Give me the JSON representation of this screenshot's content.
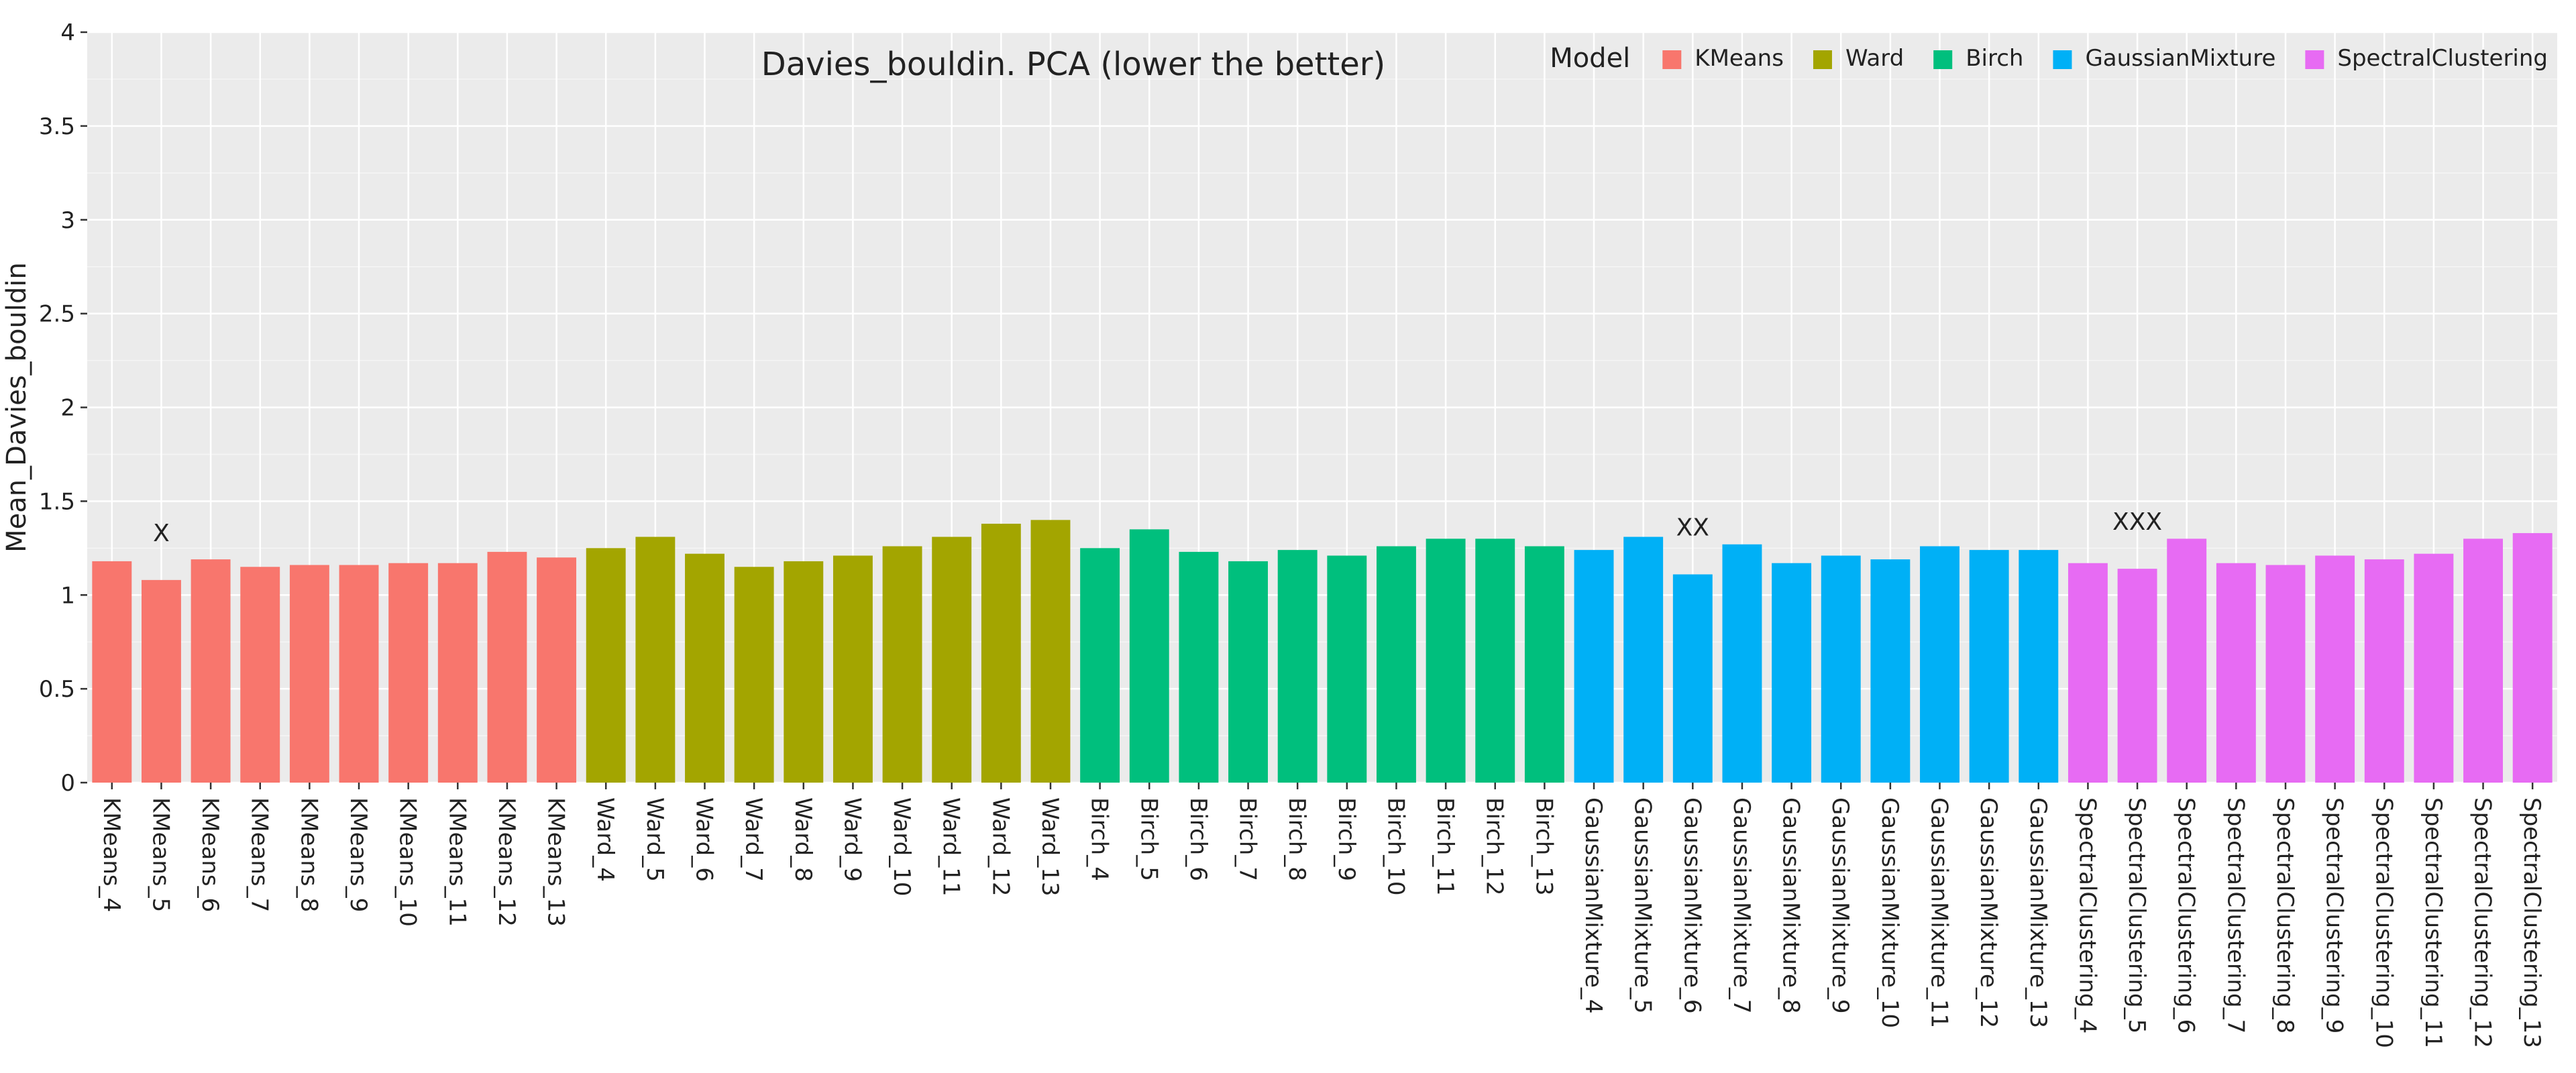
{
  "chart_data": {
    "type": "bar",
    "title": "Davies_bouldin. PCA (lower the better)",
    "xlabel": "",
    "ylabel": "Mean_Davies_bouldin",
    "ylim": [
      0,
      4
    ],
    "yticks": [
      0,
      0.5,
      1,
      1.5,
      2,
      2.5,
      3,
      3.5,
      4
    ],
    "ytick_labels": [
      "0",
      "0.5",
      "1",
      "1.5",
      "2",
      "2.5",
      "3",
      "3.5",
      "4"
    ],
    "grid": true,
    "legend": {
      "title": "Model",
      "placement": "top-right",
      "entries": [
        {
          "name": "KMeans",
          "color": "#F8766D"
        },
        {
          "name": "Ward",
          "color": "#A3A500"
        },
        {
          "name": "Birch",
          "color": "#00BF7D"
        },
        {
          "name": "GaussianMixture",
          "color": "#00B0F6"
        },
        {
          "name": "SpectralClustering",
          "color": "#E76BF3"
        }
      ]
    },
    "categories": [
      "KMeans_4",
      "KMeans_5",
      "KMeans_6",
      "KMeans_7",
      "KMeans_8",
      "KMeans_9",
      "KMeans_10",
      "KMeans_11",
      "KMeans_12",
      "KMeans_13",
      "Ward_4",
      "Ward_5",
      "Ward_6",
      "Ward_7",
      "Ward_8",
      "Ward_9",
      "Ward_10",
      "Ward_11",
      "Ward_12",
      "Ward_13",
      "Birch_4",
      "Birch_5",
      "Birch_6",
      "Birch_7",
      "Birch_8",
      "Birch_9",
      "Birch_10",
      "Birch_11",
      "Birch_12",
      "Birch_13",
      "GaussianMixture_4",
      "GaussianMixture_5",
      "GaussianMixture_6",
      "GaussianMixture_7",
      "GaussianMixture_8",
      "GaussianMixture_9",
      "GaussianMixture_10",
      "GaussianMixture_11",
      "GaussianMixture_12",
      "GaussianMixture_13",
      "SpectralClustering_4",
      "SpectralClustering_5",
      "SpectralClustering_6",
      "SpectralClustering_7",
      "SpectralClustering_8",
      "SpectralClustering_9",
      "SpectralClustering_10",
      "SpectralClustering_11",
      "SpectralClustering_12",
      "SpectralClustering_13"
    ],
    "groups": [
      "KMeans",
      "KMeans",
      "KMeans",
      "KMeans",
      "KMeans",
      "KMeans",
      "KMeans",
      "KMeans",
      "KMeans",
      "KMeans",
      "Ward",
      "Ward",
      "Ward",
      "Ward",
      "Ward",
      "Ward",
      "Ward",
      "Ward",
      "Ward",
      "Ward",
      "Birch",
      "Birch",
      "Birch",
      "Birch",
      "Birch",
      "Birch",
      "Birch",
      "Birch",
      "Birch",
      "Birch",
      "GaussianMixture",
      "GaussianMixture",
      "GaussianMixture",
      "GaussianMixture",
      "GaussianMixture",
      "GaussianMixture",
      "GaussianMixture",
      "GaussianMixture",
      "GaussianMixture",
      "GaussianMixture",
      "SpectralClustering",
      "SpectralClustering",
      "SpectralClustering",
      "SpectralClustering",
      "SpectralClustering",
      "SpectralClustering",
      "SpectralClustering",
      "SpectralClustering",
      "SpectralClustering",
      "SpectralClustering"
    ],
    "values": [
      1.18,
      1.08,
      1.19,
      1.15,
      1.16,
      1.16,
      1.17,
      1.17,
      1.23,
      1.2,
      1.25,
      1.31,
      1.22,
      1.15,
      1.18,
      1.21,
      1.26,
      1.31,
      1.38,
      1.4,
      1.25,
      1.35,
      1.23,
      1.18,
      1.24,
      1.21,
      1.26,
      1.3,
      1.3,
      1.26,
      1.24,
      1.31,
      1.11,
      1.27,
      1.17,
      1.21,
      1.19,
      1.26,
      1.24,
      1.24,
      1.17,
      1.14,
      1.3,
      1.17,
      1.16,
      1.21,
      1.19,
      1.22,
      1.3,
      1.33
    ],
    "annotations": [
      {
        "category": "KMeans_5",
        "text": "X"
      },
      {
        "category": "GaussianMixture_6",
        "text": "XX"
      },
      {
        "category": "SpectralClustering_5",
        "text": "XXX"
      }
    ]
  }
}
